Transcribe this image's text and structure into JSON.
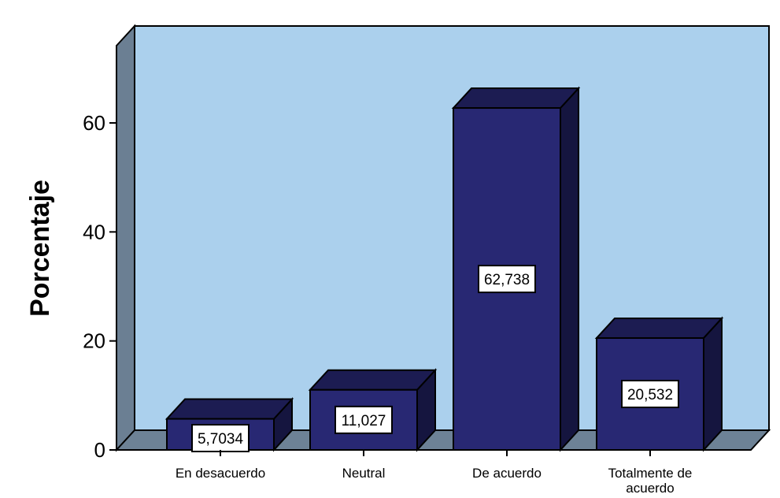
{
  "chart_data": {
    "type": "bar",
    "title": "",
    "xlabel": "",
    "ylabel": "Porcentaje",
    "categories": [
      "En desacuerdo",
      "Neutral",
      "De acuerdo",
      "Totalmente de acuerdo"
    ],
    "values": [
      5.7034,
      11.027,
      62.738,
      20.532
    ],
    "data_labels": [
      "5,7034",
      "11,027",
      "62,738",
      "20,532"
    ],
    "yticks": [
      0,
      20,
      40,
      60
    ],
    "ytick_labels": [
      "0",
      "20",
      "40",
      "60"
    ],
    "ylim": [
      0,
      76
    ],
    "grid": false,
    "style": "3d",
    "colors": {
      "bar_front": "#282873",
      "bar_top": "#1c1c52",
      "bar_side": "#15153f",
      "plot_background": "#abd0ed",
      "floor": "#6d8296",
      "left_wall": "#6b7f93",
      "label_box": "#ffffff"
    }
  }
}
